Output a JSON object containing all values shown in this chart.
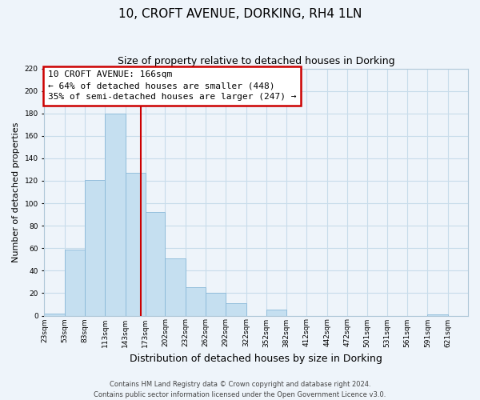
{
  "title": "10, CROFT AVENUE, DORKING, RH4 1LN",
  "subtitle": "Size of property relative to detached houses in Dorking",
  "xlabel": "Distribution of detached houses by size in Dorking",
  "ylabel": "Number of detached properties",
  "bar_left_edges": [
    23,
    53,
    83,
    113,
    143,
    173,
    202,
    232,
    262,
    292,
    322,
    352,
    382,
    412,
    442,
    472,
    501,
    531,
    561,
    591
  ],
  "bar_heights": [
    2,
    59,
    121,
    180,
    127,
    92,
    51,
    25,
    20,
    11,
    0,
    5,
    0,
    0,
    0,
    0,
    0,
    0,
    0,
    1
  ],
  "bar_widths": [
    30,
    30,
    30,
    30,
    30,
    29,
    30,
    30,
    30,
    30,
    30,
    30,
    30,
    30,
    30,
    29,
    30,
    30,
    30,
    30
  ],
  "bar_color": "#c5dff0",
  "bar_edge_color": "#8ab8d8",
  "vline_x": 166,
  "vline_color": "#cc0000",
  "annotation_title": "10 CROFT AVENUE: 166sqm",
  "annotation_line1": "← 64% of detached houses are smaller (448)",
  "annotation_line2": "35% of semi-detached houses are larger (247) →",
  "annotation_box_color": "#ffffff",
  "annotation_box_edge": "#cc0000",
  "xlim": [
    23,
    651
  ],
  "ylim": [
    0,
    220
  ],
  "yticks": [
    0,
    20,
    40,
    60,
    80,
    100,
    120,
    140,
    160,
    180,
    200,
    220
  ],
  "xtick_labels": [
    "23sqm",
    "53sqm",
    "83sqm",
    "113sqm",
    "143sqm",
    "173sqm",
    "202sqm",
    "232sqm",
    "262sqm",
    "292sqm",
    "322sqm",
    "352sqm",
    "382sqm",
    "412sqm",
    "442sqm",
    "472sqm",
    "501sqm",
    "531sqm",
    "561sqm",
    "591sqm",
    "621sqm"
  ],
  "xtick_positions": [
    23,
    53,
    83,
    113,
    143,
    173,
    202,
    232,
    262,
    292,
    322,
    352,
    382,
    412,
    442,
    472,
    501,
    531,
    561,
    591,
    621
  ],
  "grid_color": "#c8dcea",
  "background_color": "#eef4fa",
  "footer_line1": "Contains HM Land Registry data © Crown copyright and database right 2024.",
  "footer_line2": "Contains public sector information licensed under the Open Government Licence v3.0.",
  "title_fontsize": 11,
  "subtitle_fontsize": 9,
  "xlabel_fontsize": 9,
  "ylabel_fontsize": 8,
  "tick_fontsize": 6.5,
  "footer_fontsize": 6,
  "ann_fontsize": 8
}
